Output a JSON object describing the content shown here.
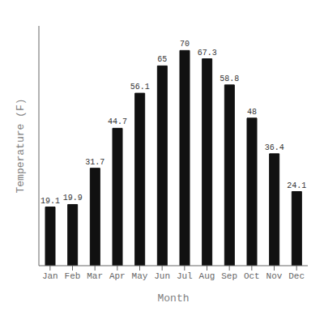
{
  "chart_data": {
    "type": "bar",
    "categories": [
      "Jan",
      "Feb",
      "Mar",
      "Apr",
      "May",
      "Jun",
      "Jul",
      "Aug",
      "Sep",
      "Oct",
      "Nov",
      "Dec"
    ],
    "values": [
      19.1,
      19.9,
      31.7,
      44.7,
      56.1,
      65.0,
      70.0,
      67.3,
      58.8,
      48.0,
      36.4,
      24.1
    ],
    "color": "#111111",
    "xlabel": "Month",
    "ylabel": "Temperature (F)",
    "ylim": [
      0,
      78
    ],
    "data_labels": true,
    "tick_labels": "x",
    "grid": false
  }
}
